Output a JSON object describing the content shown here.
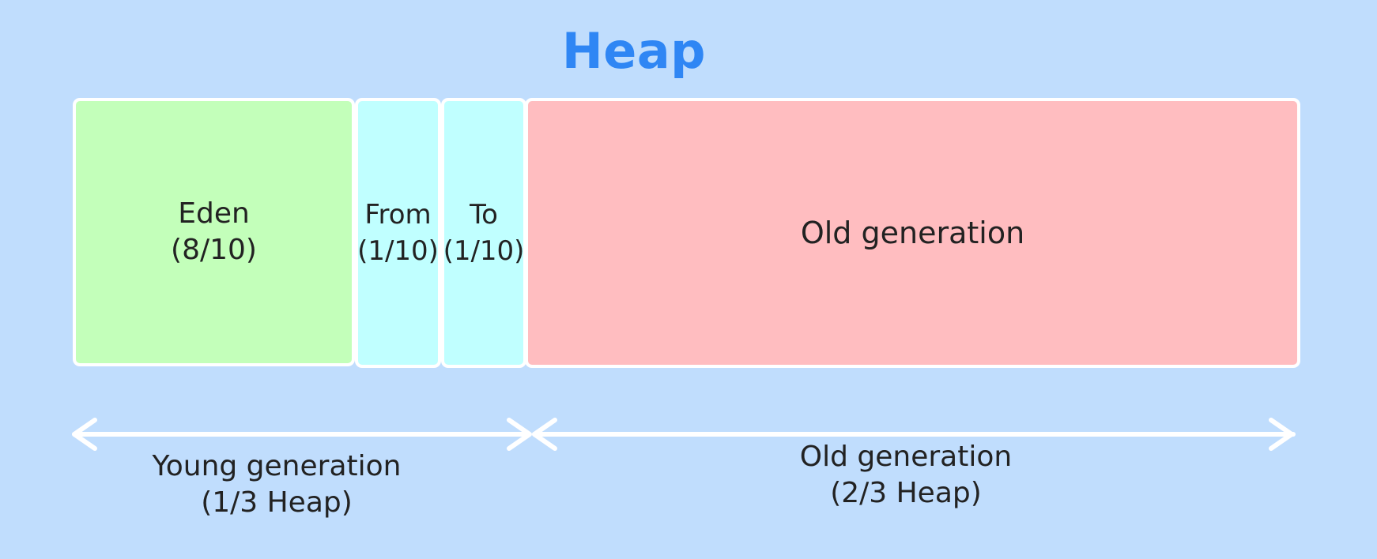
{
  "title": "Heap",
  "regions": {
    "eden": {
      "name": "Eden",
      "fraction": "(8/10)"
    },
    "from": {
      "name": "From",
      "fraction": "(1/10)"
    },
    "to": {
      "name": "To",
      "fraction": "(1/10)"
    },
    "old": {
      "name": "Old generation"
    }
  },
  "spans": {
    "young": {
      "name": "Young generation",
      "fraction": "(1/3 Heap)"
    },
    "old": {
      "name": "Old generation",
      "fraction": "(2/3 Heap)"
    }
  },
  "colors": {
    "background": "#c0ddfd",
    "title": "#2f86f4",
    "eden": "#c3ffba",
    "survivor": "#c0ffff",
    "old": "#ffbdc0",
    "outline": "#ffffff"
  }
}
